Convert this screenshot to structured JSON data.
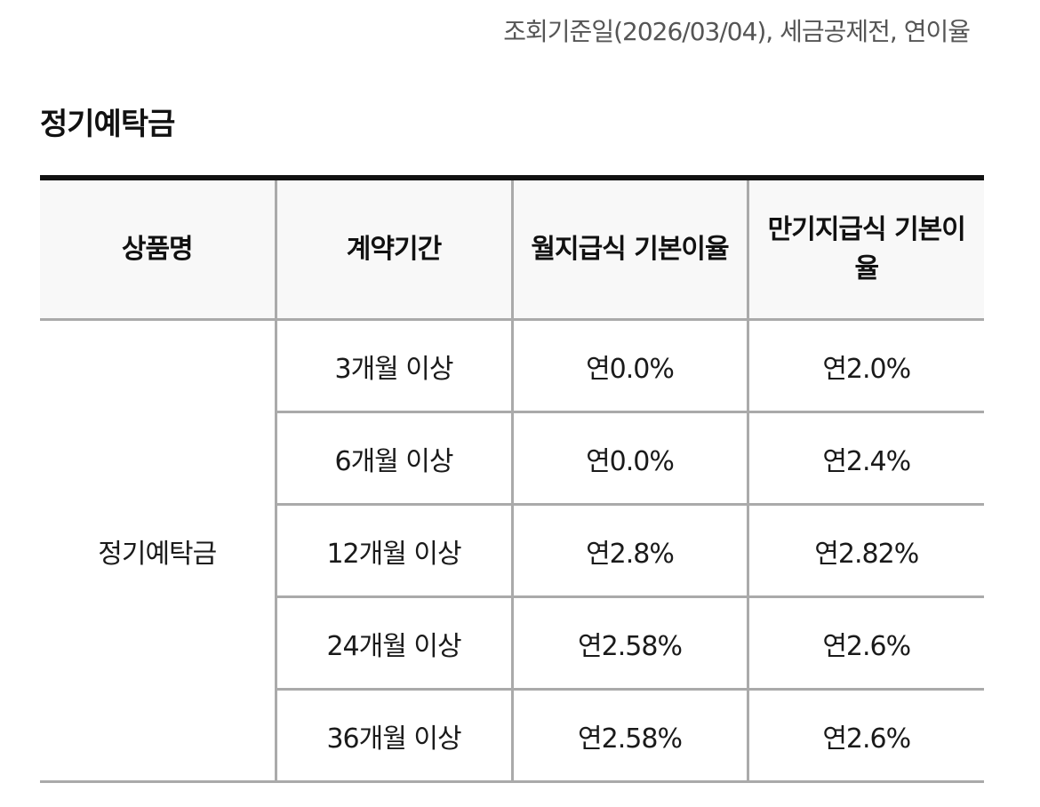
{
  "notice": "조회기준일(2026/03/04), 세금공제전, 연이율",
  "section_title": "정기예탁금",
  "table": {
    "headers": [
      "상품명",
      "계약기간",
      "월지급식 기본이율",
      "만기지급식 기본이율"
    ],
    "product_name": "정기예탁금",
    "rows": [
      {
        "period": "3개월 이상",
        "monthly_rate": "연0.0%",
        "maturity_rate": "연2.0%"
      },
      {
        "period": "6개월 이상",
        "monthly_rate": "연0.0%",
        "maturity_rate": "연2.4%"
      },
      {
        "period": "12개월 이상",
        "monthly_rate": "연2.8%",
        "maturity_rate": "연2.82%"
      },
      {
        "period": "24개월 이상",
        "monthly_rate": "연2.58%",
        "maturity_rate": "연2.6%"
      },
      {
        "period": "36개월 이상",
        "monthly_rate": "연2.58%",
        "maturity_rate": "연2.6%"
      }
    ]
  }
}
